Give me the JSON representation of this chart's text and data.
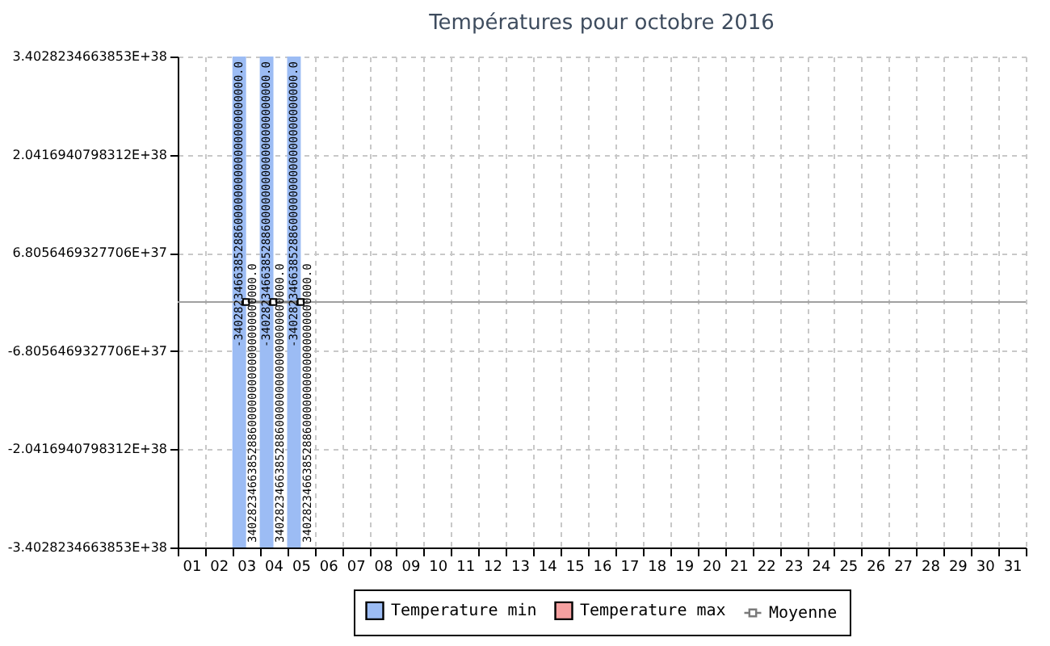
{
  "chart_data": {
    "type": "bar",
    "title": "Températures pour octobre 2016",
    "categories": [
      "01",
      "02",
      "03",
      "04",
      "05",
      "06",
      "07",
      "08",
      "09",
      "10",
      "11",
      "12",
      "13",
      "14",
      "15",
      "16",
      "17",
      "18",
      "19",
      "20",
      "21",
      "22",
      "23",
      "24",
      "25",
      "26",
      "27",
      "28",
      "29",
      "30",
      "31"
    ],
    "series": [
      {
        "name": "Temperature min",
        "type": "bar",
        "color": "#9cbcf4",
        "values": [
          null,
          null,
          6.8056469327706e+38,
          6.8056469327706e+38,
          6.8056469327706e+38,
          null,
          null,
          null,
          null,
          null,
          null,
          null,
          null,
          null,
          null,
          null,
          null,
          null,
          null,
          null,
          null,
          null,
          null,
          null,
          null,
          null,
          null,
          null,
          null,
          null,
          null
        ],
        "base": [
          null,
          null,
          -3.4028234663853e+38,
          -3.4028234663853e+38,
          -3.4028234663853e+38,
          null,
          null,
          null,
          null,
          null,
          null,
          null,
          null,
          null,
          null,
          null,
          null,
          null,
          null,
          null,
          null,
          null,
          null,
          null,
          null,
          null,
          null,
          null,
          null,
          null,
          null
        ]
      },
      {
        "name": "Temperature max",
        "type": "bar",
        "color": "#f5a0a0",
        "values": [
          null,
          null,
          null,
          null,
          null,
          null,
          null,
          null,
          null,
          null,
          null,
          null,
          null,
          null,
          null,
          null,
          null,
          null,
          null,
          null,
          null,
          null,
          null,
          null,
          null,
          null,
          null,
          null,
          null,
          null,
          null
        ]
      },
      {
        "name": "Moyenne",
        "type": "line",
        "color": "#7a7a7a",
        "values": [
          null,
          null,
          0,
          0,
          0,
          null,
          null,
          null,
          null,
          null,
          null,
          null,
          null,
          null,
          null,
          null,
          null,
          null,
          null,
          null,
          null,
          null,
          null,
          null,
          null,
          null,
          null,
          null,
          null,
          null,
          null
        ]
      }
    ],
    "ylim": [
      -3.4028234663853e+38,
      3.4028234663853e+38
    ],
    "yticks": [
      {
        "value": -3.4028234663853e+38,
        "label": "-3.4028234663853E+38"
      },
      {
        "value": -2.0416940798312e+38,
        "label": "-2.0416940798312E+38"
      },
      {
        "value": -6.8056469327706e+37,
        "label": "-6.8056469327706E+37"
      },
      {
        "value": 6.8056469327706e+37,
        "label": "6.8056469327706E+37"
      },
      {
        "value": 2.0416940798312e+38,
        "label": "2.0416940798312E+38"
      },
      {
        "value": 3.4028234663853e+38,
        "label": "3.4028234663853E+38"
      }
    ],
    "ref_lines": [
      {
        "axis": "y",
        "value": 0,
        "color": "#a0a0a0"
      }
    ],
    "annotations": [
      {
        "text": "-340282346638528860000000000000000000000.0",
        "x": "03",
        "y": 3.4028234663853e+38
      },
      {
        "text": "340282346638528860000000000000000000000.0",
        "x": "03",
        "y": -3.4028234663853e+38
      },
      {
        "text": "-340282346638528860000000000000000000000.0",
        "x": "04",
        "y": 3.4028234663853e+38
      },
      {
        "text": "340282346638528860000000000000000000000.0",
        "x": "04",
        "y": -3.4028234663853e+38
      },
      {
        "text": "-340282346638528860000000000000000000000.0",
        "x": "05",
        "y": 3.4028234663853e+38
      },
      {
        "text": "340282346638528860000000000000000000000.0",
        "x": "05",
        "y": -3.4028234663853e+38
      }
    ],
    "grid": true,
    "legend": "bottom",
    "marker": "square"
  }
}
